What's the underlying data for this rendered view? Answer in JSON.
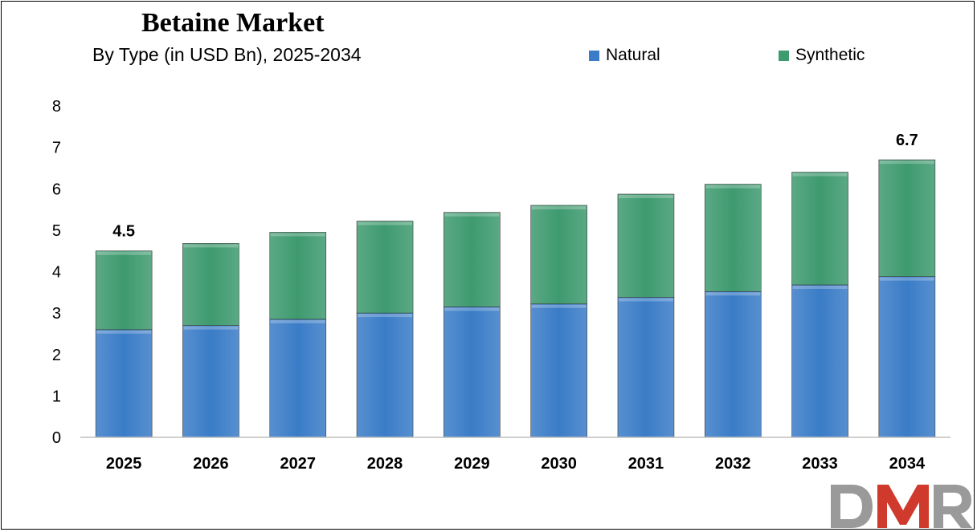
{
  "chart_data": {
    "type": "bar",
    "stacked": true,
    "title": "Betaine Market",
    "subtitle": "By Type (in USD Bn), 2025-2034",
    "categories": [
      "2025",
      "2026",
      "2027",
      "2028",
      "2029",
      "2030",
      "2031",
      "2032",
      "2033",
      "2034"
    ],
    "series": [
      {
        "name": "Natural",
        "color": "#3a7cc7",
        "values": [
          2.6,
          2.7,
          2.85,
          3.0,
          3.15,
          3.22,
          3.38,
          3.52,
          3.68,
          3.88
        ]
      },
      {
        "name": "Synthetic",
        "color": "#3e9a6f",
        "values": [
          1.9,
          1.98,
          2.1,
          2.22,
          2.28,
          2.38,
          2.49,
          2.59,
          2.72,
          2.82
        ]
      }
    ],
    "totals_labels": [
      {
        "category": "2025",
        "text": "4.5"
      },
      {
        "category": "2034",
        "text": "6.7"
      }
    ],
    "ylim": [
      0,
      8
    ],
    "yticks": [
      "0",
      "1",
      "2",
      "3",
      "4",
      "5",
      "6",
      "7",
      "8"
    ],
    "xlabel": "",
    "ylabel": "",
    "grid": false,
    "legend": "top-right"
  },
  "logo": {
    "text": "DMR",
    "colors": [
      "#9a9a9a",
      "#d03a2c"
    ]
  }
}
